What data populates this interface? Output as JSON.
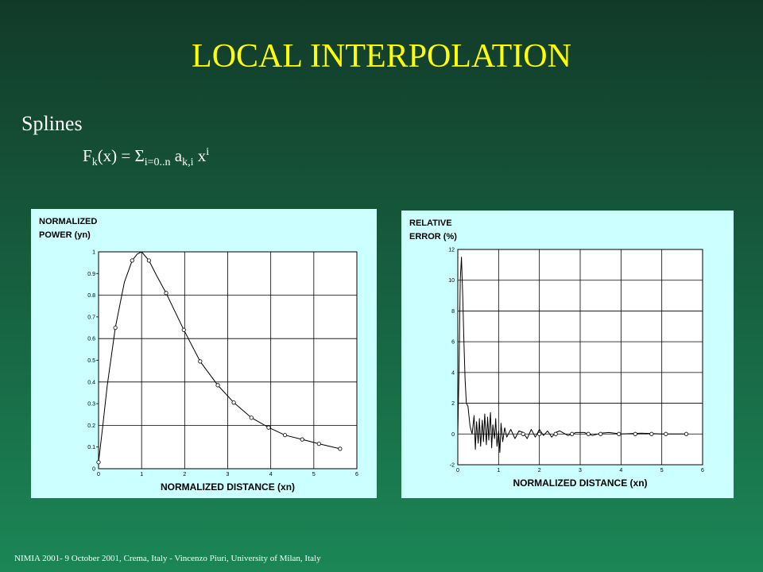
{
  "slide": {
    "title": "LOCAL INTERPOLATION",
    "bullet": "Splines",
    "formula": [
      "F",
      "k",
      "(x) = Σ",
      "i=0..n",
      " a",
      "k,i",
      " x",
      "i"
    ],
    "footer": "NIMIA 2001- 9 October 2001, Crema, Italy - Vincenzo Piuri, University of Milan, Italy"
  },
  "chart_data": [
    {
      "type": "line",
      "ylabel": [
        "NORMALIZED",
        "POWER (yn)"
      ],
      "xlabel": "NORMALIZED DISTANCE (xn)",
      "xlim": [
        0,
        6
      ],
      "xticks": [
        0,
        1,
        2,
        3,
        4,
        5,
        6
      ],
      "ylim": [
        0,
        1
      ],
      "yticks": [
        0,
        0.1,
        0.2,
        0.3,
        0.4,
        0.5,
        0.6,
        0.7,
        0.8,
        0.9,
        1
      ],
      "grid_every": 2,
      "grid": true,
      "series": [
        {
          "color": "#000000",
          "marker": false,
          "x": [
            0,
            0.1,
            0.2,
            0.39,
            0.6,
            0.78,
            0.9,
            1.0,
            1.17,
            1.35,
            1.57,
            1.98,
            2.36,
            2.77,
            3.14,
            3.55,
            3.95,
            4.33,
            4.73,
            5.12,
            5.61
          ],
          "values": [
            0.03,
            0.2,
            0.38,
            0.65,
            0.86,
            0.96,
            0.99,
            1.0,
            0.96,
            0.89,
            0.81,
            0.64,
            0.495,
            0.385,
            0.305,
            0.235,
            0.19,
            0.155,
            0.135,
            0.115,
            0.092
          ]
        },
        {
          "color": "#000000",
          "marker": "circle",
          "x": [
            0,
            0.39,
            0.78,
            1.17,
            1.57,
            1.98,
            2.36,
            2.77,
            3.14,
            3.55,
            3.95,
            4.33,
            4.73,
            5.12,
            5.61
          ],
          "values": [
            0.03,
            0.65,
            0.96,
            0.96,
            0.81,
            0.64,
            0.495,
            0.385,
            0.305,
            0.235,
            0.19,
            0.155,
            0.135,
            0.115,
            0.092
          ]
        }
      ]
    },
    {
      "type": "line",
      "ylabel": [
        "RELATIVE",
        "ERROR (%)"
      ],
      "xlabel": "NORMALIZED DISTANCE (xn)",
      "xlim": [
        0,
        6
      ],
      "xticks": [
        0,
        1,
        2,
        3,
        4,
        5,
        6
      ],
      "ylim": [
        -2,
        12
      ],
      "yticks": [
        -2,
        0,
        2,
        4,
        6,
        8,
        10,
        12
      ],
      "grid_every": 1,
      "grid": true,
      "series": [
        {
          "color": "#000000",
          "marker": false,
          "x": [
            0,
            0.03,
            0.06,
            0.09,
            0.12,
            0.15,
            0.18,
            0.21,
            0.25,
            0.3,
            0.35,
            0.4,
            0.43,
            0.46,
            0.5,
            0.53,
            0.56,
            0.6,
            0.63,
            0.66,
            0.7,
            0.73,
            0.76,
            0.8,
            0.83,
            0.86,
            0.9,
            0.93,
            0.96,
            1.0,
            1.03,
            1.06,
            1.1,
            1.15,
            1.2,
            1.3,
            1.4,
            1.5,
            1.6,
            1.7,
            1.8,
            1.9,
            2.0,
            2.1,
            2.2,
            2.3,
            2.4,
            2.5,
            2.7,
            2.9,
            3.1,
            3.3,
            3.5,
            3.7,
            4.0,
            4.5,
            5.0,
            5.6
          ],
          "values": [
            0,
            4,
            10,
            11.5,
            9,
            6,
            3.5,
            2,
            1.8,
            0.5,
            0,
            1.2,
            -1,
            0.8,
            -0.6,
            1,
            -0.8,
            0.9,
            -0.5,
            1.3,
            -0.7,
            1.1,
            -0.4,
            1.4,
            -0.9,
            0.6,
            -0.3,
            1.0,
            -0.8,
            0.2,
            -1.2,
            0.7,
            -0.5,
            0.4,
            -0.2,
            0.3,
            -0.3,
            0.2,
            0.1,
            -0.3,
            0.3,
            -0.2,
            0.3,
            -0.1,
            0.2,
            -0.2,
            0.1,
            0.2,
            -0.1,
            0.1,
            0.1,
            -0.1,
            0.05,
            0.1,
            0,
            0.05,
            0,
            0
          ]
        },
        {
          "color": "#000000",
          "marker": "circle",
          "x": [
            1.6,
            2.0,
            2.4,
            2.8,
            3.2,
            3.5,
            3.95,
            4.35,
            4.75,
            5.1,
            5.6
          ],
          "values": [
            0,
            0,
            0,
            0,
            0,
            0,
            0,
            0,
            0,
            0,
            0
          ]
        }
      ]
    }
  ]
}
